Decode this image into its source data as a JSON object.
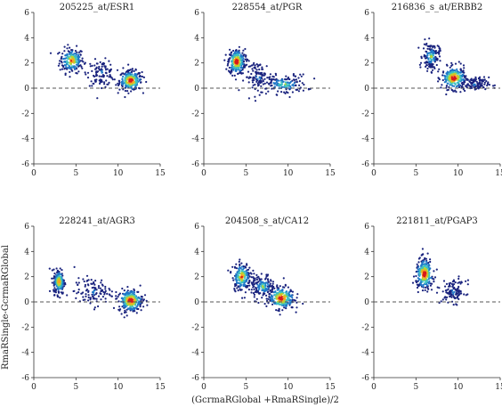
{
  "figure": {
    "xlabel": "(GcrmaRGlobal +RmaRSingle)/2",
    "ylabel": "RmaRSingle-GcrmaRGlobal"
  },
  "colors": {
    "density_low": "#1a237e",
    "density_mid_low": "#1f78c8",
    "density_mid": "#3ec1c1",
    "density_mid_high": "#b8d432",
    "density_high": "#f5a623",
    "density_peak": "#d7191c",
    "reference_line": "#555555",
    "axis": "#333333"
  },
  "chart_data": [
    {
      "type": "scatter",
      "title": "205225_at/ESR1",
      "xlim": [
        0,
        15
      ],
      "ylim": [
        -6,
        6
      ],
      "xticks": [
        0,
        5,
        10,
        15
      ],
      "yticks": [
        -6,
        -4,
        -2,
        0,
        2,
        4,
        6
      ],
      "reference_line_y": 0,
      "clusters": [
        {
          "center": [
            4.5,
            2.2
          ],
          "spread": [
            1.3,
            0.9
          ],
          "density": "high"
        },
        {
          "center": [
            11.5,
            0.6
          ],
          "spread": [
            1.2,
            0.7
          ],
          "density": "peak"
        },
        {
          "center": [
            8.0,
            1.2
          ],
          "spread": [
            1.5,
            0.9
          ],
          "density": "low"
        }
      ]
    },
    {
      "type": "scatter",
      "title": "228554_at/PGR",
      "xlim": [
        0,
        15
      ],
      "ylim": [
        -6,
        6
      ],
      "xticks": [
        0,
        5,
        10,
        15
      ],
      "yticks": [
        -6,
        -4,
        -2,
        0,
        2,
        4,
        6
      ],
      "reference_line_y": 0,
      "clusters": [
        {
          "center": [
            3.9,
            2.1
          ],
          "spread": [
            0.9,
            0.9
          ],
          "density": "peak"
        },
        {
          "center": [
            9.5,
            0.3
          ],
          "spread": [
            2.5,
            0.7
          ],
          "density": "mid"
        },
        {
          "center": [
            6.5,
            0.9
          ],
          "spread": [
            1.5,
            1.1
          ],
          "density": "low"
        }
      ]
    },
    {
      "type": "scatter",
      "title": "216836_s_at/ERBB2",
      "xlim": [
        0,
        15
      ],
      "ylim": [
        -6,
        6
      ],
      "xticks": [
        0,
        5,
        10,
        15
      ],
      "yticks": [
        -6,
        -4,
        -2,
        0,
        2,
        4,
        6
      ],
      "reference_line_y": 0,
      "clusters": [
        {
          "center": [
            9.5,
            0.8
          ],
          "spread": [
            1.3,
            0.8
          ],
          "density": "peak"
        },
        {
          "center": [
            6.8,
            2.5
          ],
          "spread": [
            0.9,
            1.0
          ],
          "density": "mid"
        },
        {
          "center": [
            12.0,
            0.3
          ],
          "spread": [
            1.5,
            0.5
          ],
          "density": "low"
        }
      ]
    },
    {
      "type": "scatter",
      "title": "228241_at/AGR3",
      "xlim": [
        0,
        15
      ],
      "ylim": [
        -6,
        6
      ],
      "xticks": [
        0,
        5,
        10,
        15
      ],
      "yticks": [
        -6,
        -4,
        -2,
        0,
        2,
        4,
        6
      ],
      "reference_line_y": 0,
      "clusters": [
        {
          "center": [
            3.0,
            1.6
          ],
          "spread": [
            0.6,
            0.9
          ],
          "density": "high"
        },
        {
          "center": [
            11.5,
            0.1
          ],
          "spread": [
            1.3,
            0.8
          ],
          "density": "peak"
        },
        {
          "center": [
            7.0,
            0.8
          ],
          "spread": [
            2.0,
            1.0
          ],
          "density": "low"
        }
      ]
    },
    {
      "type": "scatter",
      "title": "204508_s_at/CA12",
      "xlim": [
        0,
        15
      ],
      "ylim": [
        -6,
        6
      ],
      "xticks": [
        0,
        5,
        10,
        15
      ],
      "yticks": [
        -6,
        -4,
        -2,
        0,
        2,
        4,
        6
      ],
      "reference_line_y": 0,
      "clusters": [
        {
          "center": [
            9.2,
            0.3
          ],
          "spread": [
            1.4,
            0.8
          ],
          "density": "peak"
        },
        {
          "center": [
            4.5,
            2.0
          ],
          "spread": [
            1.0,
            1.0
          ],
          "density": "high"
        },
        {
          "center": [
            7.0,
            1.2
          ],
          "spread": [
            1.3,
            0.9
          ],
          "density": "mid"
        }
      ]
    },
    {
      "type": "scatter",
      "title": "221811_at/PGAP3",
      "xlim": [
        0,
        15
      ],
      "ylim": [
        -6,
        6
      ],
      "xticks": [
        0,
        5,
        10,
        15
      ],
      "yticks": [
        -6,
        -4,
        -2,
        0,
        2,
        4,
        6
      ],
      "reference_line_y": 0,
      "clusters": [
        {
          "center": [
            6.0,
            2.2
          ],
          "spread": [
            0.9,
            1.1
          ],
          "density": "peak"
        },
        {
          "center": [
            9.5,
            0.8
          ],
          "spread": [
            1.3,
            0.8
          ],
          "density": "low"
        }
      ]
    }
  ]
}
